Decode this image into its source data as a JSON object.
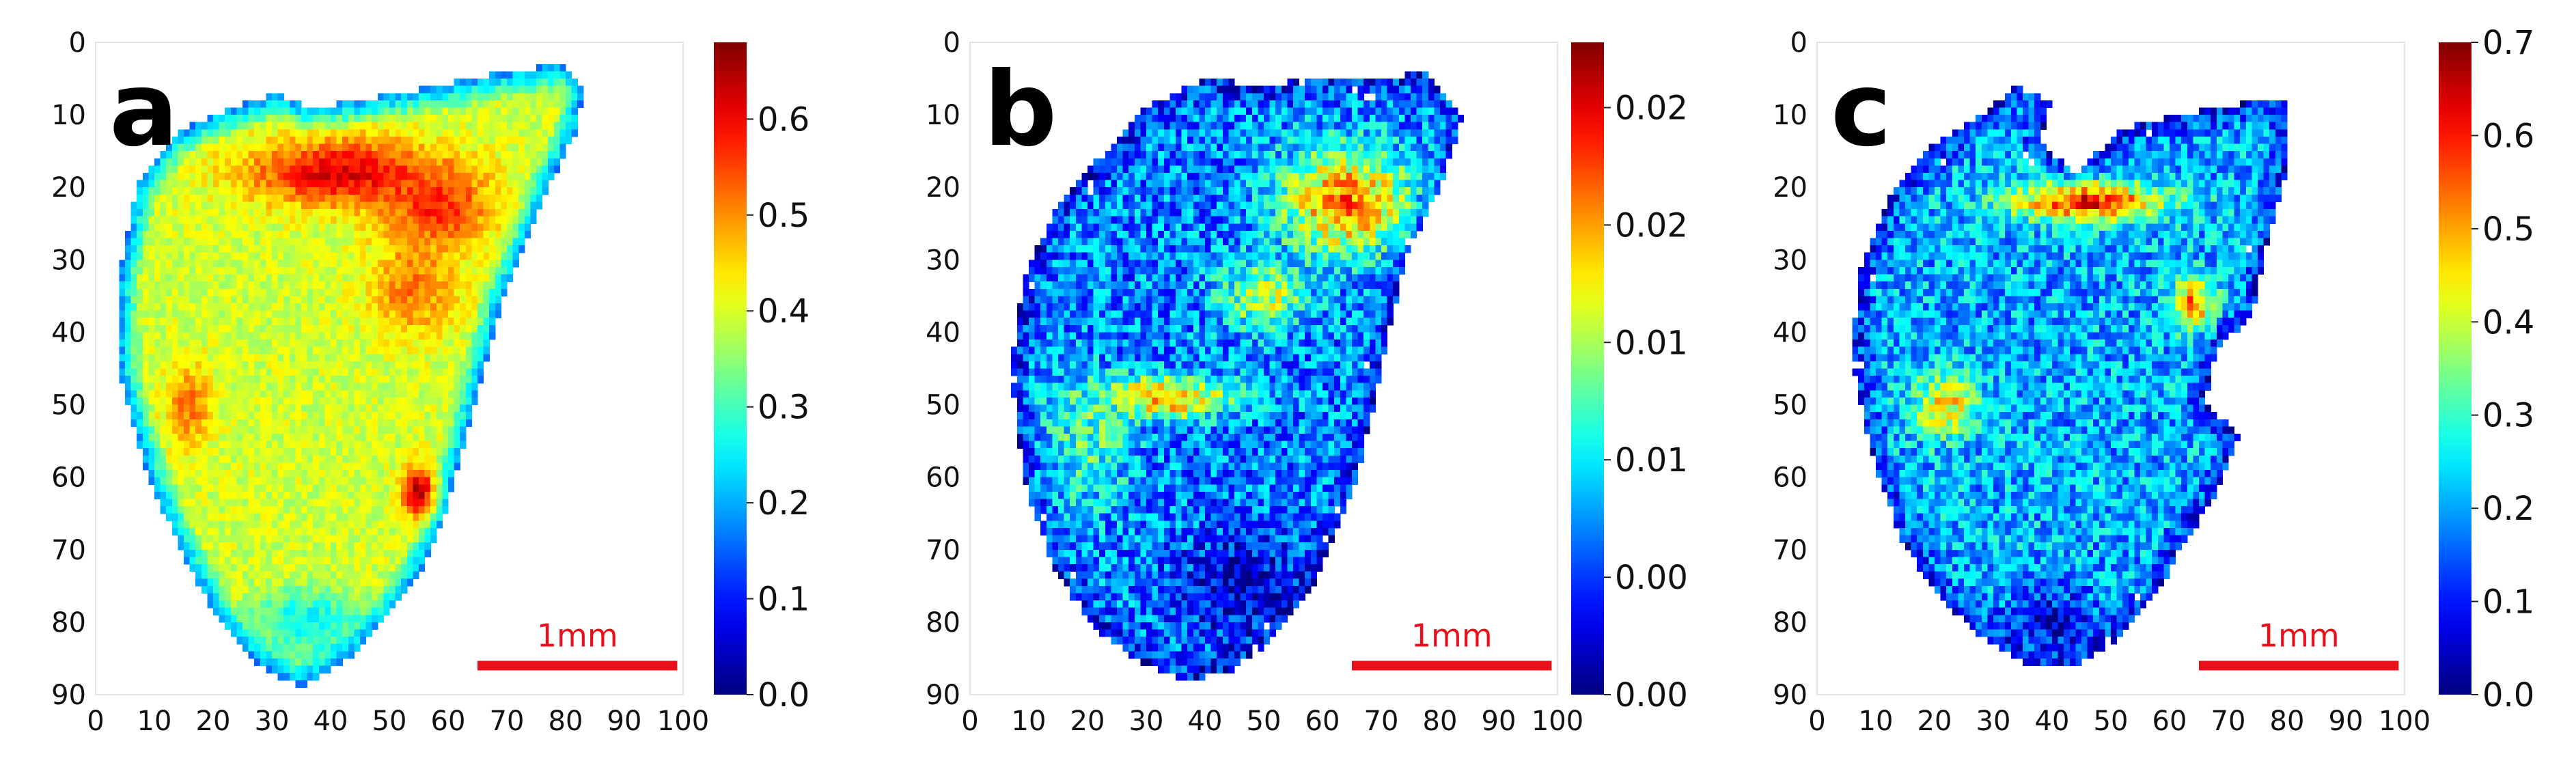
{
  "chart_data": [
    {
      "type": "heatmap",
      "panel_label": "a",
      "x_ticks": [
        "0",
        "10",
        "20",
        "30",
        "40",
        "50",
        "60",
        "70",
        "80",
        "90",
        "100"
      ],
      "y_ticks": [
        "0",
        "10",
        "20",
        "30",
        "40",
        "50",
        "60",
        "70",
        "80",
        "90"
      ],
      "xlim": [
        0,
        100
      ],
      "ylim": [
        0,
        90
      ],
      "colorbar": {
        "min": 0.0,
        "max": 0.68,
        "ticks": [
          "0.0",
          "0.1",
          "0.2",
          "0.3",
          "0.4",
          "0.5",
          "0.6"
        ],
        "tick_values": [
          0.0,
          0.1,
          0.2,
          0.3,
          0.4,
          0.5,
          0.6
        ]
      },
      "scale_bar": {
        "label": "1mm",
        "color": "#e8101a"
      },
      "shape_outline": [
        [
          31,
          7
        ],
        [
          37,
          9
        ],
        [
          45,
          8
        ],
        [
          58,
          6
        ],
        [
          70,
          4
        ],
        [
          80,
          3
        ],
        [
          83,
          6
        ],
        [
          82,
          12
        ],
        [
          76,
          22
        ],
        [
          69,
          36
        ],
        [
          64,
          52
        ],
        [
          60,
          64
        ],
        [
          56,
          72
        ],
        [
          50,
          79
        ],
        [
          43,
          85
        ],
        [
          35,
          89
        ],
        [
          28,
          86
        ],
        [
          21,
          80
        ],
        [
          15,
          71
        ],
        [
          9,
          60
        ],
        [
          4,
          46
        ],
        [
          4,
          32
        ],
        [
          7,
          20
        ],
        [
          13,
          13
        ],
        [
          20,
          10
        ]
      ],
      "hotspots": [
        {
          "x": 42,
          "y": 18,
          "rx": 18,
          "ry": 5,
          "value": 0.62
        },
        {
          "x": 58,
          "y": 23,
          "rx": 10,
          "ry": 6,
          "value": 0.58
        },
        {
          "x": 54,
          "y": 34,
          "rx": 8,
          "ry": 7,
          "value": 0.52
        },
        {
          "x": 16,
          "y": 50,
          "rx": 4,
          "ry": 6,
          "value": 0.52
        },
        {
          "x": 55,
          "y": 62,
          "rx": 3,
          "ry": 4,
          "value": 0.64
        },
        {
          "x": 36,
          "y": 80,
          "rx": 10,
          "ry": 5,
          "value": 0.25
        }
      ]
    },
    {
      "type": "heatmap",
      "panel_label": "b",
      "x_ticks": [
        "0",
        "10",
        "20",
        "30",
        "40",
        "50",
        "60",
        "70",
        "80",
        "90",
        "100"
      ],
      "y_ticks": [
        "0",
        "10",
        "20",
        "30",
        "40",
        "50",
        "60",
        "70",
        "80",
        "90"
      ],
      "xlim": [
        0,
        100
      ],
      "ylim": [
        0,
        90
      ],
      "colorbar": {
        "min": 0.0,
        "max": 0.025,
        "ticks": [
          "0.00",
          "0.00",
          "0.01",
          "0.01",
          "0.02",
          "0.02"
        ],
        "tick_values": [
          0.0,
          0.0045,
          0.009,
          0.0135,
          0.018,
          0.0225
        ]
      },
      "scale_bar": {
        "label": "1mm",
        "color": "#e8101a"
      },
      "shape_outline": [
        [
          40,
          5
        ],
        [
          50,
          6
        ],
        [
          58,
          5
        ],
        [
          70,
          5
        ],
        [
          78,
          4
        ],
        [
          84,
          10
        ],
        [
          80,
          20
        ],
        [
          74,
          30
        ],
        [
          70,
          45
        ],
        [
          66,
          60
        ],
        [
          62,
          68
        ],
        [
          58,
          76
        ],
        [
          52,
          82
        ],
        [
          44,
          87
        ],
        [
          36,
          88
        ],
        [
          28,
          85
        ],
        [
          20,
          80
        ],
        [
          14,
          72
        ],
        [
          9,
          60
        ],
        [
          7,
          45
        ],
        [
          9,
          33
        ],
        [
          14,
          24
        ],
        [
          22,
          16
        ],
        [
          30,
          9
        ]
      ],
      "hotspots": [
        {
          "x": 64,
          "y": 22,
          "rx": 12,
          "ry": 8,
          "value": 0.019
        },
        {
          "x": 33,
          "y": 49,
          "rx": 12,
          "ry": 3,
          "value": 0.019
        },
        {
          "x": 50,
          "y": 35,
          "rx": 8,
          "ry": 5,
          "value": 0.014
        },
        {
          "x": 20,
          "y": 55,
          "rx": 8,
          "ry": 10,
          "value": 0.011
        },
        {
          "x": 46,
          "y": 75,
          "rx": 12,
          "ry": 9,
          "value": 0.002
        }
      ]
    },
    {
      "type": "heatmap",
      "panel_label": "c",
      "x_ticks": [
        "0",
        "10",
        "20",
        "30",
        "40",
        "50",
        "60",
        "70",
        "80",
        "90",
        "100"
      ],
      "y_ticks": [
        "0",
        "10",
        "20",
        "30",
        "40",
        "50",
        "60",
        "70",
        "80",
        "90"
      ],
      "xlim": [
        0,
        100
      ],
      "ylim": [
        0,
        90
      ],
      "colorbar": {
        "min": 0.0,
        "max": 0.7,
        "ticks": [
          "0.0",
          "0.1",
          "0.2",
          "0.3",
          "0.4",
          "0.5",
          "0.6",
          "0.7"
        ],
        "tick_values": [
          0.0,
          0.1,
          0.2,
          0.3,
          0.4,
          0.5,
          0.6,
          0.7
        ]
      },
      "scale_bar": {
        "label": "1mm",
        "color": "#e8101a"
      },
      "shape_outline": [
        [
          28,
          10
        ],
        [
          34,
          6
        ],
        [
          40,
          8
        ],
        [
          38,
          14
        ],
        [
          44,
          18
        ],
        [
          52,
          12
        ],
        [
          62,
          10
        ],
        [
          74,
          8
        ],
        [
          80,
          8
        ],
        [
          80,
          18
        ],
        [
          76,
          30
        ],
        [
          74,
          38
        ],
        [
          68,
          42
        ],
        [
          66,
          50
        ],
        [
          72,
          54
        ],
        [
          68,
          62
        ],
        [
          62,
          70
        ],
        [
          58,
          76
        ],
        [
          52,
          82
        ],
        [
          44,
          86
        ],
        [
          36,
          86
        ],
        [
          28,
          82
        ],
        [
          20,
          76
        ],
        [
          14,
          68
        ],
        [
          9,
          56
        ],
        [
          6,
          44
        ],
        [
          7,
          32
        ],
        [
          12,
          22
        ],
        [
          20,
          14
        ]
      ],
      "hotspots": [
        {
          "x": 46,
          "y": 22,
          "rx": 14,
          "ry": 3,
          "value": 0.6
        },
        {
          "x": 36,
          "y": 42,
          "rx": 14,
          "ry": 10,
          "value": 0.2
        },
        {
          "x": 22,
          "y": 50,
          "rx": 6,
          "ry": 5,
          "value": 0.45
        },
        {
          "x": 64,
          "y": 36,
          "rx": 4,
          "ry": 4,
          "value": 0.52
        },
        {
          "x": 40,
          "y": 80,
          "rx": 10,
          "ry": 6,
          "value": 0.08
        }
      ]
    }
  ]
}
